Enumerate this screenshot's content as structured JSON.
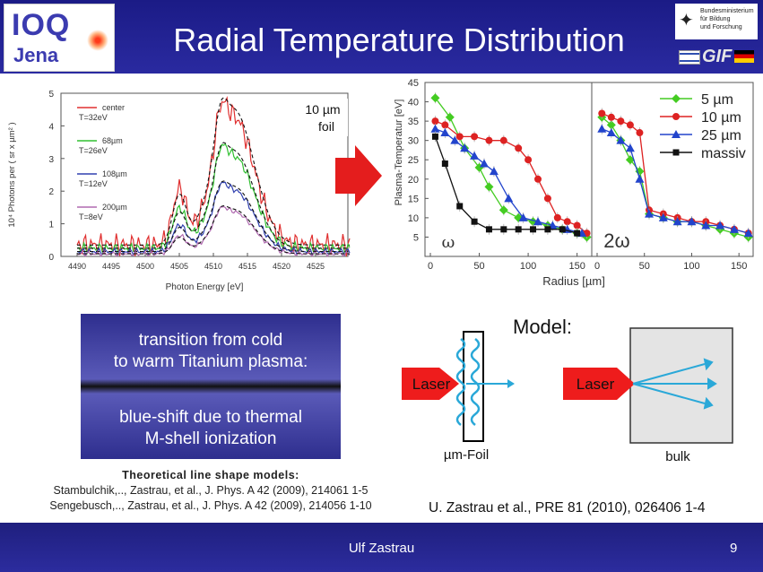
{
  "header": {
    "logo_top": "IOQ",
    "logo_bottom": "Jena",
    "title": "Radial Temperature Distribution",
    "sponsor_lines": [
      "Bundesministerium",
      "für Bildung",
      "und Forschung"
    ],
    "gif_label": "GIF"
  },
  "spectrum": {
    "xlabel": "Photon Energy [eV]",
    "ylabel": "10⁴ Photons per ( sr x µm² )",
    "xticks": [
      "4490",
      "4495",
      "4500",
      "4505",
      "4510",
      "4515",
      "4520",
      "4525"
    ],
    "yticks": [
      "0",
      "1",
      "2",
      "3",
      "4",
      "5"
    ],
    "legend": [
      {
        "name": "center",
        "temp": "T=32eV",
        "color": "#e03030"
      },
      {
        "name": "68µm",
        "temp": "T=26eV",
        "color": "#30c030"
      },
      {
        "name": "108µm",
        "temp": "T=12eV",
        "color": "#3040b0"
      },
      {
        "name": "200µm",
        "temp": "T=8eV",
        "color": "#b06ab0"
      }
    ],
    "note_line1": "10 µm",
    "note_line2": "foil"
  },
  "chart_data": {
    "type": "line",
    "ylabel": "Plasma-Temperatur [eV]",
    "xlabel": "Radius [µm]",
    "ylim": [
      0,
      45
    ],
    "yticks": [
      "5",
      "10",
      "15",
      "20",
      "25",
      "30",
      "35",
      "40",
      "45"
    ],
    "xticks": [
      "0",
      "50",
      "100",
      "150"
    ],
    "panels": [
      {
        "label": "ω",
        "series": [
          {
            "name": "5 µm",
            "color": "#44cc22",
            "marker": "diamond",
            "x": [
              5,
              20,
              35,
              50,
              60,
              75,
              90,
              105,
              120,
              135,
              150,
              160
            ],
            "y": [
              41,
              36,
              28,
              23,
              18,
              12,
              10,
              9,
              8,
              7,
              6,
              5
            ]
          },
          {
            "name": "10 µm",
            "color": "#dd2222",
            "marker": "circle",
            "x": [
              5,
              15,
              30,
              45,
              60,
              75,
              90,
              100,
              110,
              120,
              130,
              140,
              150,
              160
            ],
            "y": [
              35,
              34,
              31,
              31,
              30,
              30,
              28,
              25,
              20,
              15,
              10,
              9,
              8,
              6
            ]
          },
          {
            "name": "25 µm",
            "color": "#2244cc",
            "marker": "triangle",
            "x": [
              5,
              15,
              25,
              35,
              45,
              55,
              65,
              80,
              95,
              110,
              125,
              140,
              155
            ],
            "y": [
              33,
              32,
              30,
              28,
              26,
              24,
              22,
              15,
              10,
              9,
              8,
              7,
              6
            ]
          },
          {
            "name": "massiv",
            "color": "#111111",
            "marker": "square",
            "x": [
              5,
              15,
              30,
              45,
              60,
              75,
              90,
              105,
              120,
              135,
              150
            ],
            "y": [
              31,
              24,
              13,
              9,
              7,
              7,
              7,
              7,
              7,
              7,
              6
            ]
          }
        ]
      },
      {
        "label": "2ω",
        "series": [
          {
            "name": "5 µm",
            "color": "#44cc22",
            "marker": "diamond",
            "x": [
              5,
              15,
              25,
              35,
              45,
              55,
              70,
              85,
              100,
              115,
              130,
              145,
              160
            ],
            "y": [
              36,
              34,
              30,
              25,
              22,
              11,
              10,
              9,
              9,
              8,
              7,
              6,
              5
            ]
          },
          {
            "name": "10 µm",
            "color": "#dd2222",
            "marker": "circle",
            "x": [
              5,
              15,
              25,
              35,
              45,
              55,
              70,
              85,
              100,
              115,
              130,
              145,
              160
            ],
            "y": [
              37,
              36,
              35,
              34,
              32,
              12,
              11,
              10,
              9,
              9,
              8,
              7,
              6
            ]
          },
          {
            "name": "25 µm",
            "color": "#2244cc",
            "marker": "triangle",
            "x": [
              5,
              15,
              25,
              35,
              45,
              55,
              70,
              85,
              100,
              115,
              130,
              145,
              160
            ],
            "y": [
              33,
              32,
              30,
              28,
              20,
              11,
              10,
              9,
              9,
              8,
              8,
              7,
              6
            ]
          }
        ]
      }
    ],
    "legend": [
      "5 µm",
      "10 µm",
      "25 µm",
      "massiv"
    ]
  },
  "box": {
    "line1": "transition from cold",
    "line2": "to warm Titanium plasma:",
    "line3": "blue-shift due to thermal",
    "line4": "M-shell ionization"
  },
  "refs": {
    "heading": "Theoretical line shape models:",
    "line1": "Stambulchik,.., Zastrau, et al., J. Phys. A 42 (2009), 214061 1-5",
    "line2": "Sengebusch,.., Zastrau, et al., J. Phys. A 42 (2009), 214056 1-10",
    "right": "U. Zastrau et al., PRE 81 (2010), 026406 1-4"
  },
  "model": {
    "title": "Model:",
    "laser": "Laser",
    "foil": "µm-Foil",
    "bulk": "bulk"
  },
  "footer": {
    "author": "Ulf Zastrau",
    "page": "9"
  }
}
